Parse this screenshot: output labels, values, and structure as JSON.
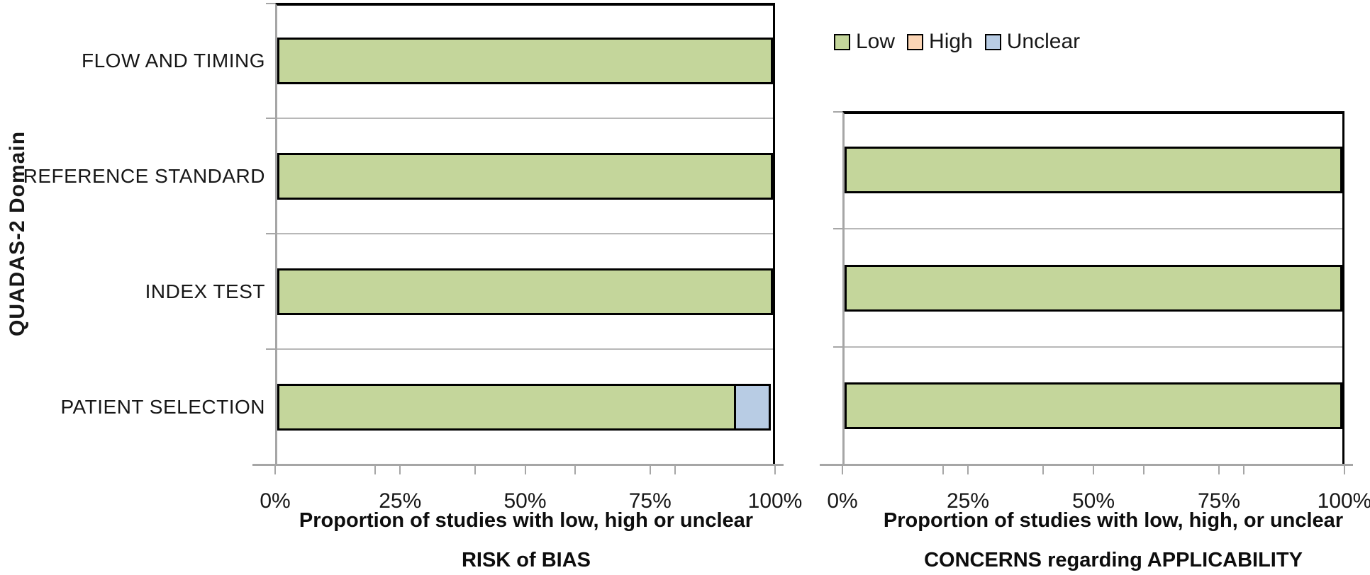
{
  "y_axis_title": "QUADAS-2 Domain",
  "legend": {
    "entries": [
      {
        "label": "Low",
        "color": "#c4d69b"
      },
      {
        "label": "High",
        "color": "#fbd5b5"
      },
      {
        "label": "Unclear",
        "color": "#b8cce4"
      }
    ]
  },
  "chart_data": [
    {
      "id": "risk_of_bias",
      "type": "bar",
      "orientation": "horizontal",
      "stacked": true,
      "categories": [
        "FLOW AND TIMING",
        "REFERENCE STANDARD",
        "INDEX TEST",
        "PATIENT SELECTION"
      ],
      "series": [
        {
          "name": "Low",
          "values": [
            100,
            100,
            100,
            92.6
          ]
        },
        {
          "name": "High",
          "values": [
            0,
            0,
            0,
            0
          ]
        },
        {
          "name": "Unclear",
          "values": [
            0,
            0,
            0,
            7.4
          ]
        }
      ],
      "xlim": [
        0,
        100
      ],
      "xticks_major": [
        0,
        25,
        50,
        75,
        100
      ],
      "xtick_labels": [
        "0%",
        "25%",
        "50%",
        "75%",
        "100%"
      ],
      "xticks_minor": [
        20,
        40,
        60,
        80
      ],
      "xlabel": "Proportion of studies with low, high or unclear",
      "title": "RISK of BIAS",
      "grid": "category-boundaries-only",
      "legend_position": "top-right"
    },
    {
      "id": "concerns_applicability",
      "type": "bar",
      "orientation": "horizontal",
      "stacked": true,
      "categories": [
        "REFERENCE STANDARD",
        "INDEX TEST",
        "PATIENT SELECTION"
      ],
      "series": [
        {
          "name": "Low",
          "values": [
            100,
            100,
            100
          ]
        },
        {
          "name": "High",
          "values": [
            0,
            0,
            0
          ]
        },
        {
          "name": "Unclear",
          "values": [
            0,
            0,
            0
          ]
        }
      ],
      "xlim": [
        0,
        100
      ],
      "xticks_major": [
        0,
        25,
        50,
        75,
        100
      ],
      "xtick_labels": [
        "0%",
        "25%",
        "50%",
        "75%",
        "100%"
      ],
      "xticks_minor": [
        20,
        40,
        60,
        80
      ],
      "xlabel": "Proportion of studies with low, high, or unclear",
      "title": "CONCERNS regarding APPLICABILITY",
      "grid": "category-boundaries-only",
      "legend_position": "none"
    }
  ]
}
